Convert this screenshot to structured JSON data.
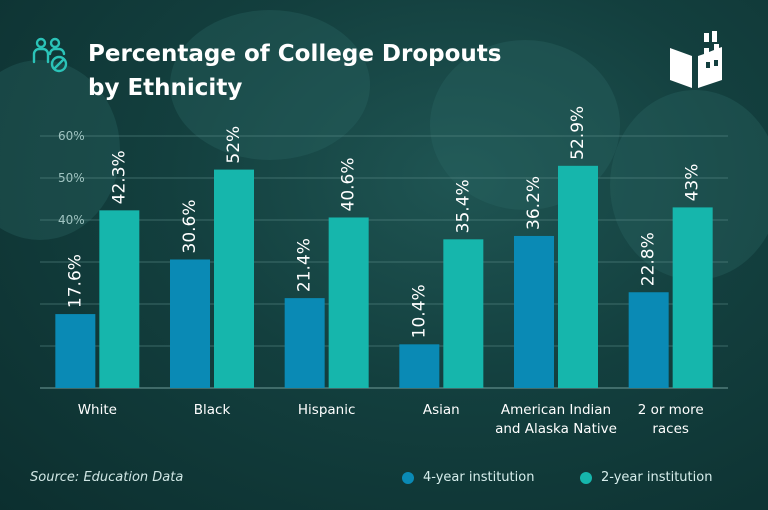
{
  "page": {
    "title_line1": "Percentage of College Dropouts",
    "title_line2": "by Ethnicity",
    "source": "Source: Education Data",
    "icons": [
      "people-group-icon",
      "book-castle-logo"
    ]
  },
  "chart_data": {
    "type": "bar",
    "title": "Percentage of College Dropouts by Ethnicity",
    "categories": [
      [
        "White"
      ],
      [
        "Black"
      ],
      [
        "Hispanic"
      ],
      [
        "Asian"
      ],
      [
        "American Indian",
        "and Alaska Native"
      ],
      [
        "2 or more",
        "races"
      ]
    ],
    "series": [
      {
        "name": "4-year institution",
        "color": "#0a8ab5",
        "values": [
          17.6,
          30.6,
          21.4,
          10.4,
          36.2,
          22.8
        ],
        "labels": [
          "17.6%",
          "30.6%",
          "21.4%",
          "10.4%",
          "36.2%",
          "22.8%"
        ]
      },
      {
        "name": "2-year institution",
        "color": "#16b6ac",
        "values": [
          42.3,
          52,
          40.6,
          35.4,
          52.9,
          43
        ],
        "labels": [
          "42.3%",
          "52%",
          "40.6%",
          "35.4%",
          "52.9%",
          "43%"
        ]
      }
    ],
    "y_ticks": [
      40,
      50,
      60
    ],
    "y_tick_labels": [
      "40%",
      "50%",
      "60%"
    ],
    "ylim": [
      0,
      60
    ],
    "grid": true,
    "legend": "bottom-right"
  }
}
